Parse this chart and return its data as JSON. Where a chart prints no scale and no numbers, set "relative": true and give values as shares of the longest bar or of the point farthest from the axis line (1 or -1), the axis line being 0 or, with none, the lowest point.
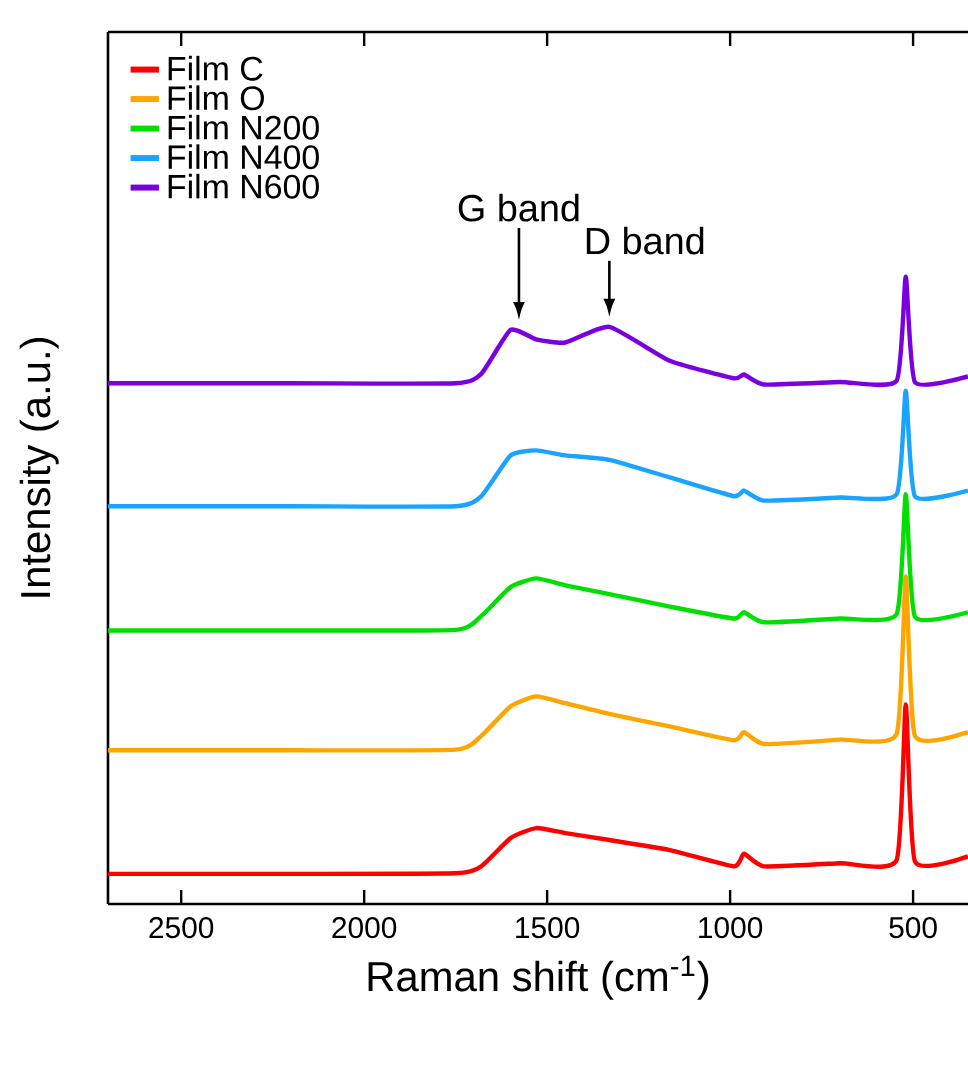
{
  "chart_data": {
    "type": "line",
    "relative": true,
    "xlabel": "Raman shift (cm$^{-1}$)",
    "ylabel": "Intensity (a.u.)",
    "x": [
      2700,
      2200,
      1750,
      1680,
      1600,
      1530,
      1450,
      1330,
      1165,
      990,
      962,
      907,
      700,
      545,
      520,
      495,
      350
    ],
    "xlim": [
      2700,
      350
    ],
    "xticks": [
      2500,
      2000,
      1500,
      1000,
      500
    ],
    "legend": "top left",
    "tick_labels": "x",
    "series": [
      {
        "name": "Film C",
        "color": "#ff0000",
        "values": [
          0.048,
          0.048,
          0.049,
          0.06,
          0.105,
          0.121,
          0.113,
          0.102,
          0.086,
          0.06,
          0.08,
          0.06,
          0.065,
          0.07,
          0.318,
          0.068,
          0.076
        ]
      },
      {
        "name": "Film O",
        "color": "#ffa500",
        "values": [
          0.245,
          0.245,
          0.246,
          0.268,
          0.315,
          0.331,
          0.32,
          0.303,
          0.283,
          0.261,
          0.274,
          0.255,
          0.262,
          0.271,
          0.522,
          0.268,
          0.274
        ]
      },
      {
        "name": "Film N200",
        "color": "#00e000",
        "values": [
          0.436,
          0.436,
          0.437,
          0.459,
          0.505,
          0.519,
          0.508,
          0.494,
          0.474,
          0.455,
          0.465,
          0.449,
          0.455,
          0.462,
          0.653,
          0.458,
          0.465
        ]
      },
      {
        "name": "Film N400",
        "color": "#1aa3ff",
        "values": [
          0.634,
          0.634,
          0.634,
          0.65,
          0.715,
          0.723,
          0.715,
          0.708,
          0.68,
          0.65,
          0.659,
          0.643,
          0.648,
          0.653,
          0.818,
          0.65,
          0.659
        ]
      },
      {
        "name": "Film N600",
        "color": "#7a00e0",
        "values": [
          0.83,
          0.83,
          0.83,
          0.845,
          0.915,
          0.9,
          0.895,
          0.92,
          0.866,
          0.838,
          0.844,
          0.828,
          0.832,
          0.834,
          1.0,
          0.832,
          0.841
        ]
      }
    ],
    "annotations": [
      {
        "text": "G band",
        "x": 1577,
        "y": 0.915
      },
      {
        "text": "D band",
        "x": 1330,
        "y": 0.92
      }
    ]
  }
}
